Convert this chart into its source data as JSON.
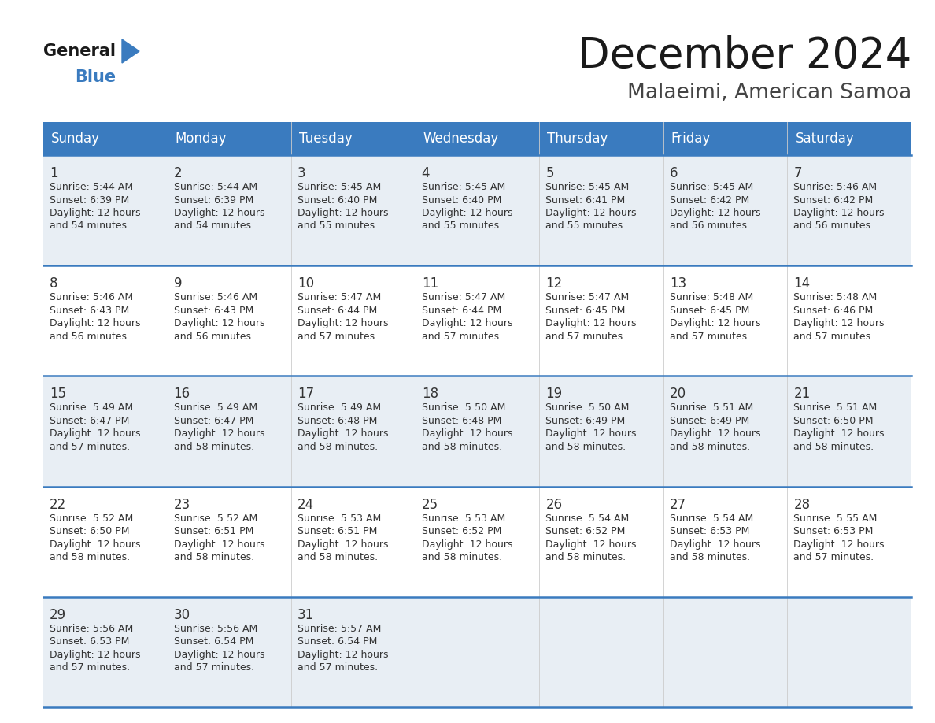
{
  "title": "December 2024",
  "subtitle": "Malaeimi, American Samoa",
  "header_bg": "#3a7bbf",
  "header_text": "#ffffff",
  "row_bg_light": "#e8eef4",
  "row_bg_white": "#ffffff",
  "day_headers": [
    "Sunday",
    "Monday",
    "Tuesday",
    "Wednesday",
    "Thursday",
    "Friday",
    "Saturday"
  ],
  "days": [
    {
      "day": 1,
      "col": 0,
      "row": 0,
      "sunrise": "5:44 AM",
      "sunset": "6:39 PM",
      "daylight_mins": "54 minutes."
    },
    {
      "day": 2,
      "col": 1,
      "row": 0,
      "sunrise": "5:44 AM",
      "sunset": "6:39 PM",
      "daylight_mins": "54 minutes."
    },
    {
      "day": 3,
      "col": 2,
      "row": 0,
      "sunrise": "5:45 AM",
      "sunset": "6:40 PM",
      "daylight_mins": "55 minutes."
    },
    {
      "day": 4,
      "col": 3,
      "row": 0,
      "sunrise": "5:45 AM",
      "sunset": "6:40 PM",
      "daylight_mins": "55 minutes."
    },
    {
      "day": 5,
      "col": 4,
      "row": 0,
      "sunrise": "5:45 AM",
      "sunset": "6:41 PM",
      "daylight_mins": "55 minutes."
    },
    {
      "day": 6,
      "col": 5,
      "row": 0,
      "sunrise": "5:45 AM",
      "sunset": "6:42 PM",
      "daylight_mins": "56 minutes."
    },
    {
      "day": 7,
      "col": 6,
      "row": 0,
      "sunrise": "5:46 AM",
      "sunset": "6:42 PM",
      "daylight_mins": "56 minutes."
    },
    {
      "day": 8,
      "col": 0,
      "row": 1,
      "sunrise": "5:46 AM",
      "sunset": "6:43 PM",
      "daylight_mins": "56 minutes."
    },
    {
      "day": 9,
      "col": 1,
      "row": 1,
      "sunrise": "5:46 AM",
      "sunset": "6:43 PM",
      "daylight_mins": "56 minutes."
    },
    {
      "day": 10,
      "col": 2,
      "row": 1,
      "sunrise": "5:47 AM",
      "sunset": "6:44 PM",
      "daylight_mins": "57 minutes."
    },
    {
      "day": 11,
      "col": 3,
      "row": 1,
      "sunrise": "5:47 AM",
      "sunset": "6:44 PM",
      "daylight_mins": "57 minutes."
    },
    {
      "day": 12,
      "col": 4,
      "row": 1,
      "sunrise": "5:47 AM",
      "sunset": "6:45 PM",
      "daylight_mins": "57 minutes."
    },
    {
      "day": 13,
      "col": 5,
      "row": 1,
      "sunrise": "5:48 AM",
      "sunset": "6:45 PM",
      "daylight_mins": "57 minutes."
    },
    {
      "day": 14,
      "col": 6,
      "row": 1,
      "sunrise": "5:48 AM",
      "sunset": "6:46 PM",
      "daylight_mins": "57 minutes."
    },
    {
      "day": 15,
      "col": 0,
      "row": 2,
      "sunrise": "5:49 AM",
      "sunset": "6:47 PM",
      "daylight_mins": "57 minutes."
    },
    {
      "day": 16,
      "col": 1,
      "row": 2,
      "sunrise": "5:49 AM",
      "sunset": "6:47 PM",
      "daylight_mins": "58 minutes."
    },
    {
      "day": 17,
      "col": 2,
      "row": 2,
      "sunrise": "5:49 AM",
      "sunset": "6:48 PM",
      "daylight_mins": "58 minutes."
    },
    {
      "day": 18,
      "col": 3,
      "row": 2,
      "sunrise": "5:50 AM",
      "sunset": "6:48 PM",
      "daylight_mins": "58 minutes."
    },
    {
      "day": 19,
      "col": 4,
      "row": 2,
      "sunrise": "5:50 AM",
      "sunset": "6:49 PM",
      "daylight_mins": "58 minutes."
    },
    {
      "day": 20,
      "col": 5,
      "row": 2,
      "sunrise": "5:51 AM",
      "sunset": "6:49 PM",
      "daylight_mins": "58 minutes."
    },
    {
      "day": 21,
      "col": 6,
      "row": 2,
      "sunrise": "5:51 AM",
      "sunset": "6:50 PM",
      "daylight_mins": "58 minutes."
    },
    {
      "day": 22,
      "col": 0,
      "row": 3,
      "sunrise": "5:52 AM",
      "sunset": "6:50 PM",
      "daylight_mins": "58 minutes."
    },
    {
      "day": 23,
      "col": 1,
      "row": 3,
      "sunrise": "5:52 AM",
      "sunset": "6:51 PM",
      "daylight_mins": "58 minutes."
    },
    {
      "day": 24,
      "col": 2,
      "row": 3,
      "sunrise": "5:53 AM",
      "sunset": "6:51 PM",
      "daylight_mins": "58 minutes."
    },
    {
      "day": 25,
      "col": 3,
      "row": 3,
      "sunrise": "5:53 AM",
      "sunset": "6:52 PM",
      "daylight_mins": "58 minutes."
    },
    {
      "day": 26,
      "col": 4,
      "row": 3,
      "sunrise": "5:54 AM",
      "sunset": "6:52 PM",
      "daylight_mins": "58 minutes."
    },
    {
      "day": 27,
      "col": 5,
      "row": 3,
      "sunrise": "5:54 AM",
      "sunset": "6:53 PM",
      "daylight_mins": "58 minutes."
    },
    {
      "day": 28,
      "col": 6,
      "row": 3,
      "sunrise": "5:55 AM",
      "sunset": "6:53 PM",
      "daylight_mins": "57 minutes."
    },
    {
      "day": 29,
      "col": 0,
      "row": 4,
      "sunrise": "5:56 AM",
      "sunset": "6:53 PM",
      "daylight_mins": "57 minutes."
    },
    {
      "day": 30,
      "col": 1,
      "row": 4,
      "sunrise": "5:56 AM",
      "sunset": "6:54 PM",
      "daylight_mins": "57 minutes."
    },
    {
      "day": 31,
      "col": 2,
      "row": 4,
      "sunrise": "5:57 AM",
      "sunset": "6:54 PM",
      "daylight_mins": "57 minutes."
    }
  ],
  "n_rows": 5,
  "n_cols": 7,
  "cell_text_color": "#333333",
  "day_num_color": "#333333",
  "divider_color": "#3a7bbf",
  "bg_color": "#ffffff",
  "logo_general_color": "#1a1a1a",
  "logo_blue_color": "#3a7bbf",
  "title_color": "#1a1a1a",
  "subtitle_color": "#444444"
}
